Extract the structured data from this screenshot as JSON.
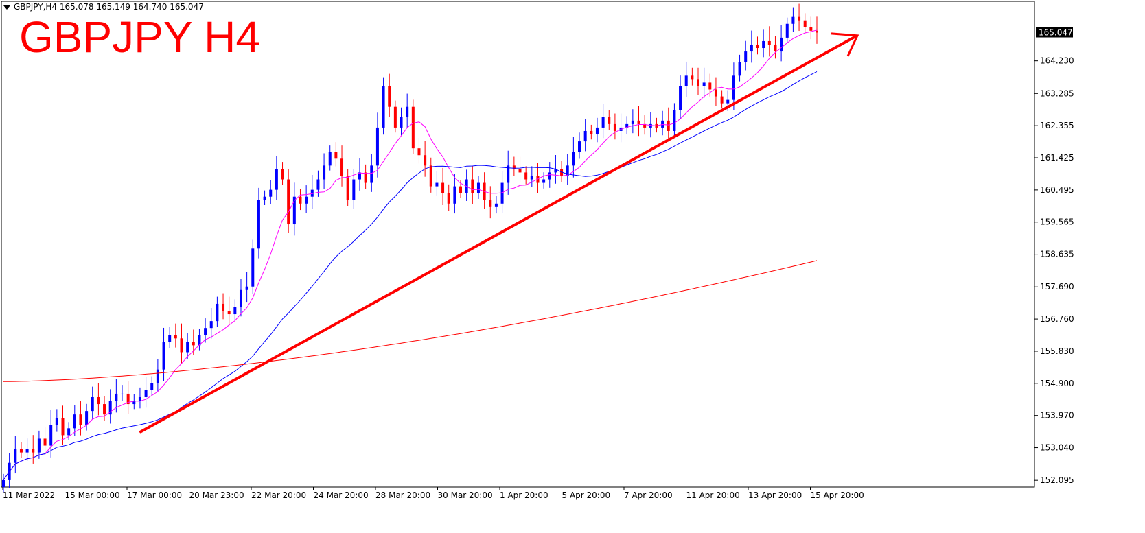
{
  "header": {
    "info_text": "GBPJPY,H4  165.078 165.149 164.740 165.047",
    "title": "GBPJPY H4"
  },
  "chart_data": {
    "type": "candlestick",
    "symbol": "GBPJPY",
    "timeframe": "H4",
    "ohlc_current": {
      "open": 165.078,
      "high": 165.149,
      "low": 164.74,
      "close": 165.047
    },
    "current_price_label": "165.047",
    "y_ticks": [
      "164.230",
      "163.285",
      "162.355",
      "161.425",
      "160.495",
      "159.565",
      "158.635",
      "157.690",
      "156.760",
      "155.830",
      "154.900",
      "153.970",
      "153.040",
      "152.095"
    ],
    "ylim": [
      151.9,
      165.95
    ],
    "x_ticks": [
      "11 Mar 2022",
      "15 Mar 00:00",
      "17 Mar 00:00",
      "20 Mar 23:00",
      "22 Mar 20:00",
      "24 Mar 20:00",
      "28 Mar 20:00",
      "30 Mar 20:00",
      "1 Apr 20:00",
      "5 Apr 20:00",
      "7 Apr 20:00",
      "11 Apr 20:00",
      "13 Apr 20:00",
      "15 Apr 20:00"
    ],
    "candle_closes": [
      152.1,
      152.6,
      153.0,
      152.9,
      153.0,
      152.9,
      153.3,
      153.1,
      153.7,
      153.9,
      153.4,
      153.6,
      154.0,
      153.7,
      154.1,
      154.5,
      154.3,
      154.0,
      154.4,
      154.6,
      154.6,
      154.3,
      154.4,
      154.5,
      154.7,
      154.9,
      155.3,
      156.1,
      156.3,
      156.2,
      155.8,
      156.1,
      156.0,
      156.3,
      156.5,
      156.7,
      157.2,
      157.0,
      156.9,
      157.1,
      157.6,
      157.7,
      158.8,
      160.2,
      160.3,
      160.5,
      161.1,
      160.8,
      159.5,
      160.3,
      160.1,
      160.3,
      160.5,
      160.8,
      161.2,
      161.6,
      161.4,
      160.9,
      160.2,
      160.8,
      161.0,
      160.7,
      161.2,
      162.3,
      163.5,
      162.9,
      162.3,
      162.6,
      162.9,
      161.7,
      161.5,
      161.2,
      160.6,
      160.7,
      160.4,
      160.1,
      160.6,
      160.4,
      160.8,
      160.4,
      160.7,
      160.2,
      160.0,
      160.1,
      160.7,
      161.2,
      161.1,
      161.0,
      160.8,
      160.9,
      160.7,
      160.8,
      161.0,
      161.1,
      160.9,
      161.2,
      161.6,
      161.9,
      162.2,
      162.1,
      162.3,
      162.6,
      162.4,
      162.2,
      162.3,
      162.4,
      162.5,
      162.4,
      162.3,
      162.4,
      162.3,
      162.5,
      162.2,
      162.8,
      163.5,
      163.8,
      163.7,
      163.5,
      163.6,
      163.4,
      163.2,
      163.0,
      163.1,
      163.8,
      164.2,
      164.5,
      164.7,
      164.6,
      164.8,
      164.7,
      164.5,
      164.9,
      165.3,
      165.5,
      165.4,
      165.2,
      165.1,
      165.047
    ],
    "ma_fast_color": "#ff00ff",
    "ma_mid_color": "#0000ff",
    "ma_slow_color": "#ff0000",
    "trend_line": {
      "from": {
        "x": "16 Mar",
        "y": 153.5
      },
      "to": {
        "x": "16 Apr",
        "y": 165.0
      },
      "color": "#ff0000"
    },
    "bull_color": "#0000ff",
    "bear_color": "#ff0000",
    "grid": false
  }
}
